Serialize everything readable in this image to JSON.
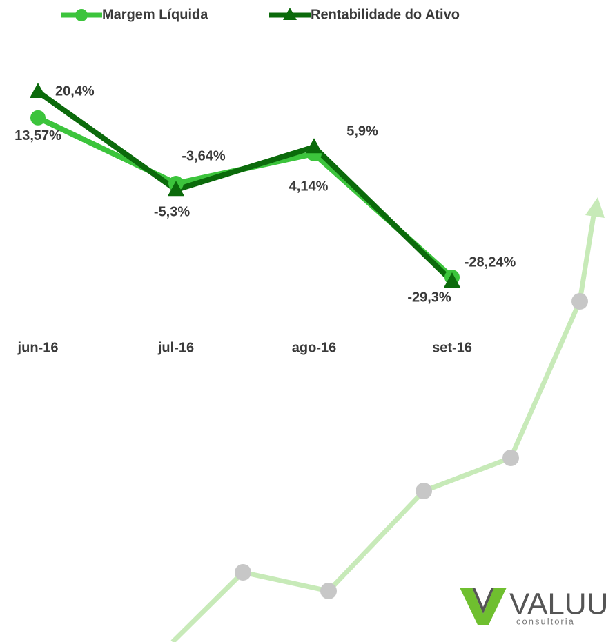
{
  "chart_data": {
    "type": "line",
    "categories": [
      "jun-16",
      "jul-16",
      "ago-16",
      "set-16"
    ],
    "series": [
      {
        "name": "Margem Líquida",
        "color": "#3cc43c",
        "marker": "circle",
        "values": [
          13.57,
          -3.64,
          4.14,
          -28.24
        ],
        "value_labels": [
          "13,57%",
          "-3,64%",
          "4,14%",
          "-28,24%"
        ]
      },
      {
        "name": "Rentabilidade do Ativo",
        "color": "#0b6a0b",
        "marker": "triangle",
        "values": [
          20.4,
          -5.3,
          5.9,
          -29.3
        ],
        "value_labels": [
          "20,4%",
          "-5,3%",
          "5,9%",
          "-29,3%"
        ]
      }
    ],
    "legend": "top"
  },
  "logo": {
    "name": "VALUUP",
    "tagline": "consultoria"
  }
}
